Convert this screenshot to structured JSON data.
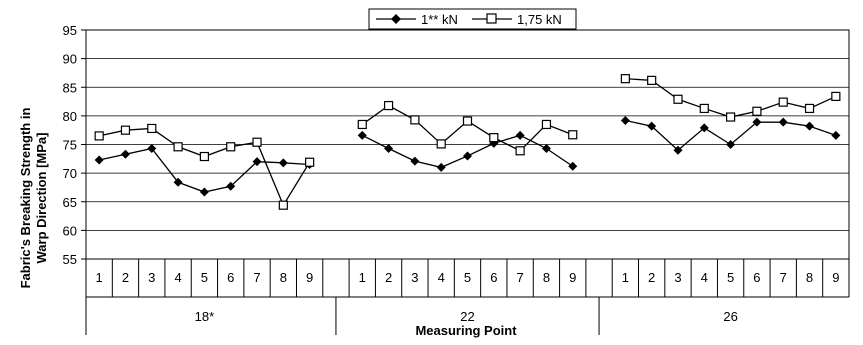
{
  "chart_data": {
    "type": "line",
    "title": "",
    "ylabel_line1": "Fabric's Breaking Strength in",
    "ylabel_line2": "Warp Direction [MPa]",
    "xlabel": "Measuring Point",
    "ylim": [
      55,
      95
    ],
    "y_ticks": [
      55,
      60,
      65,
      70,
      75,
      80,
      85,
      90,
      95
    ],
    "grid": true,
    "legend_position": "top-center",
    "groups": [
      {
        "label": "18*",
        "points": [
          "1",
          "2",
          "3",
          "4",
          "5",
          "6",
          "7",
          "8",
          "9"
        ]
      },
      {
        "label": "22",
        "points": [
          "1",
          "2",
          "3",
          "4",
          "5",
          "6",
          "7",
          "8",
          "9"
        ]
      },
      {
        "label": "26",
        "points": [
          "1",
          "2",
          "3",
          "4",
          "5",
          "6",
          "7",
          "8",
          "9"
        ]
      }
    ],
    "series": [
      {
        "name": "1** kN",
        "marker": "filled-diamond",
        "color": "#000000",
        "values": [
          [
            72.3,
            73.3,
            74.3,
            68.4,
            66.7,
            67.7,
            72.0,
            71.8,
            71.5
          ],
          [
            76.6,
            74.3,
            72.1,
            71.0,
            73.0,
            75.2,
            76.6,
            74.3,
            71.2
          ],
          [
            79.2,
            78.2,
            74.0,
            77.9,
            75.0,
            78.9,
            78.9,
            78.2,
            76.6
          ]
        ]
      },
      {
        "name": "1,75 kN",
        "marker": "open-square",
        "color": "#000000",
        "values": [
          [
            76.5,
            77.5,
            77.8,
            74.6,
            72.9,
            74.6,
            75.4,
            64.4,
            71.9
          ],
          [
            78.5,
            81.8,
            79.3,
            75.1,
            79.1,
            76.2,
            73.9,
            78.5,
            76.7
          ],
          [
            86.5,
            86.2,
            82.9,
            81.3,
            79.8,
            80.8,
            82.4,
            81.3,
            83.4
          ]
        ]
      }
    ]
  }
}
